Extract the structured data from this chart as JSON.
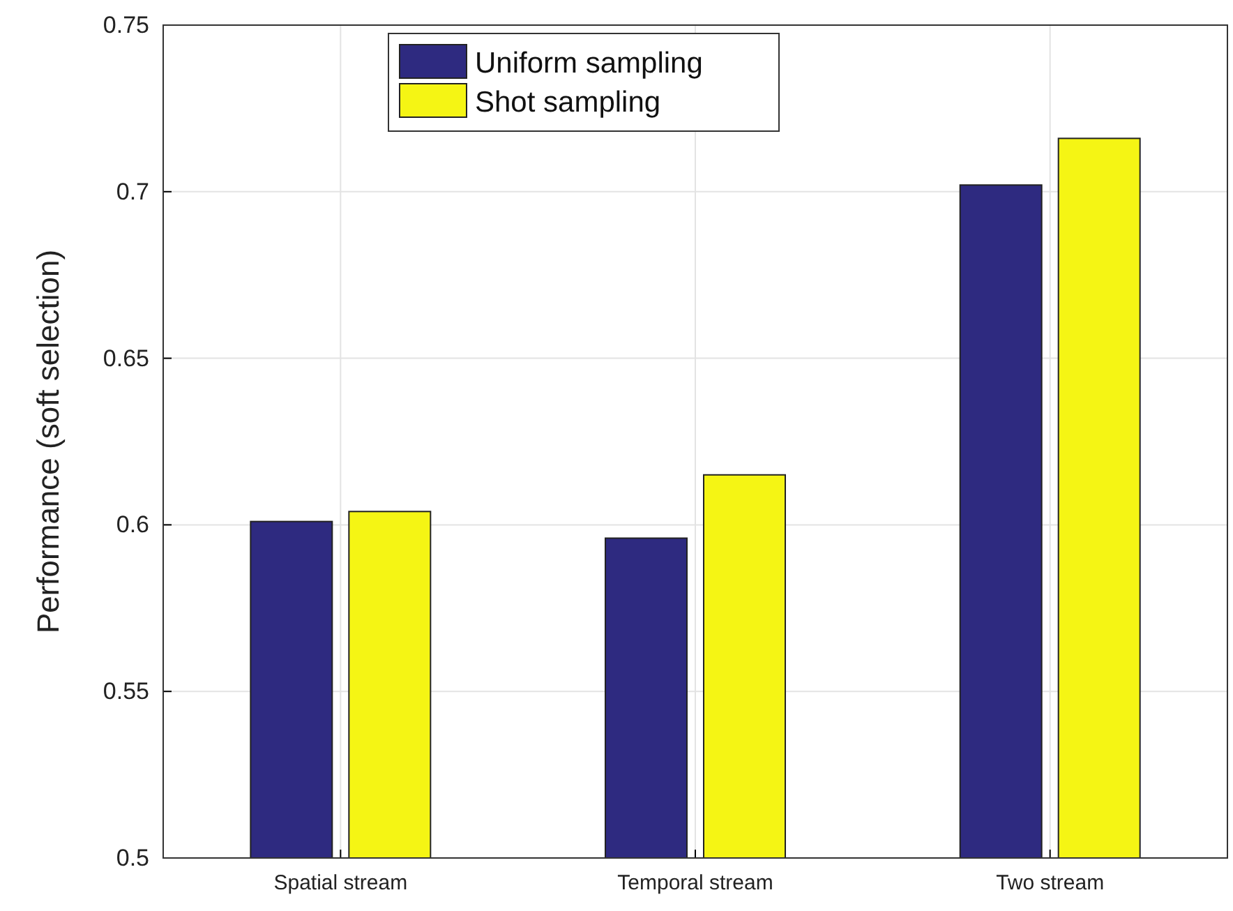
{
  "chart_data": {
    "type": "bar",
    "ylabel": "Performance (soft selection)",
    "categories": [
      "Spatial stream",
      "Temporal stream",
      "Two stream"
    ],
    "series": [
      {
        "name": "Uniform sampling",
        "color": "#2e2a80",
        "values": [
          0.601,
          0.596,
          0.702
        ]
      },
      {
        "name": "Shot sampling",
        "color": "#f5f514",
        "values": [
          0.604,
          0.615,
          0.716
        ]
      }
    ],
    "ylim": [
      0.5,
      0.75
    ],
    "yticks": [
      0.5,
      0.55,
      0.6,
      0.65,
      0.7,
      0.75
    ],
    "grid": true,
    "legend": "top"
  }
}
